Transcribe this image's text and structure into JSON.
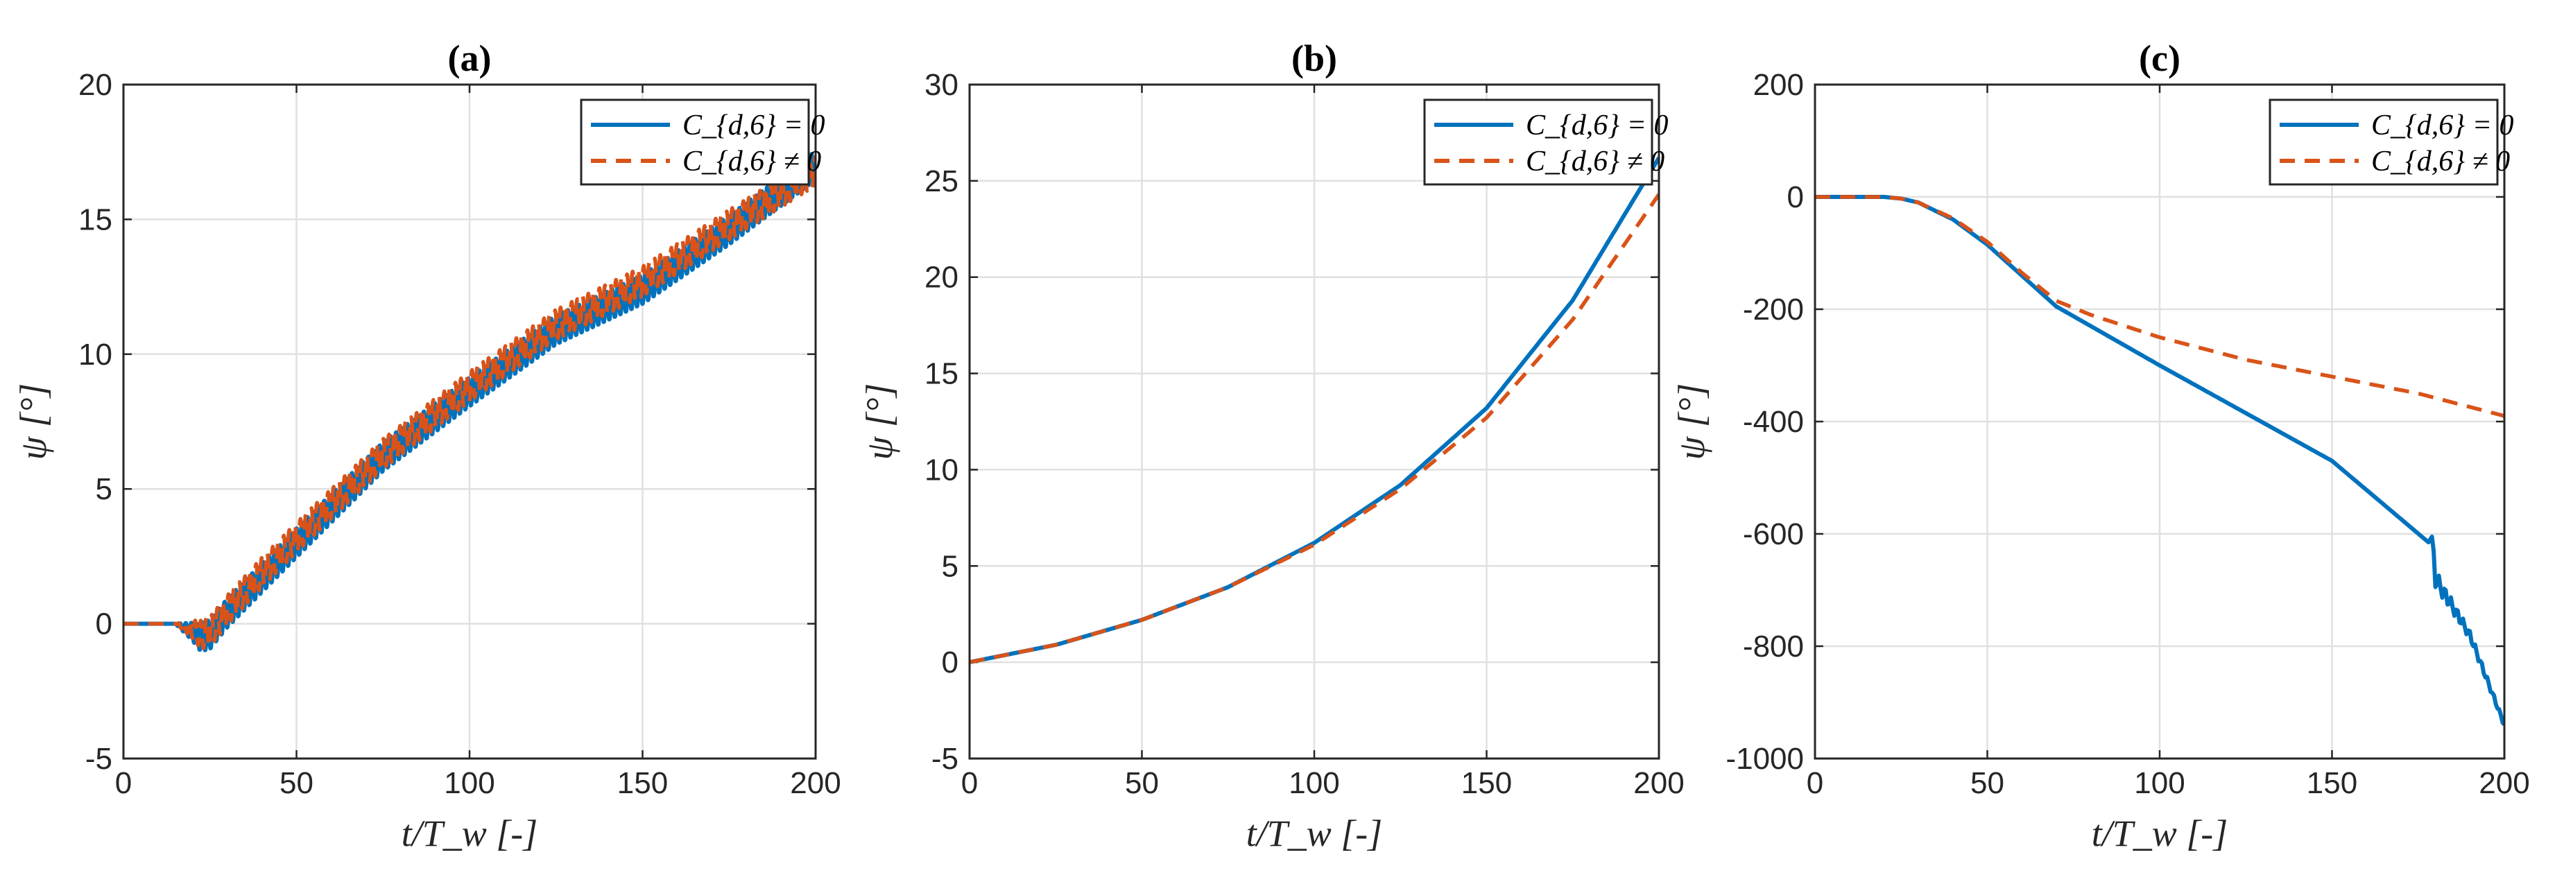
{
  "colors": {
    "series1": "#0072BD",
    "series2": "#D95319",
    "grid": "#e0e0e0",
    "axis": "#262626"
  },
  "chart_data": [
    {
      "type": "line",
      "title": "(a)",
      "xlabel": "t/T_w  [-]",
      "ylabel": "ψ [°]",
      "xlim": [
        0,
        200
      ],
      "ylim": [
        -5,
        20
      ],
      "xticks": [
        "0",
        "50",
        "100",
        "150",
        "200"
      ],
      "yticks": [
        "-5",
        "0",
        "5",
        "10",
        "15",
        "20"
      ],
      "grid": true,
      "legend_position": "top-right",
      "oscillation": 0.55,
      "series": [
        {
          "name": "C_{d,6} = 0",
          "style": "solid",
          "x": [
            0,
            15,
            20,
            22,
            25,
            30,
            40,
            50,
            75,
            100,
            125,
            150,
            175,
            200
          ],
          "y": [
            0,
            0,
            -0.3,
            -0.5,
            -0.4,
            0.4,
            1.7,
            3.0,
            6.2,
            8.6,
            10.9,
            12.4,
            14.6,
            17.0
          ]
        },
        {
          "name": "C_{d,6} ≠ 0",
          "style": "dashed",
          "x": [
            0,
            15,
            20,
            22,
            25,
            30,
            40,
            50,
            75,
            100,
            125,
            150,
            175,
            200
          ],
          "y": [
            0,
            0,
            -0.2,
            -0.4,
            -0.3,
            0.5,
            1.9,
            3.2,
            6.3,
            8.8,
            11.1,
            12.7,
            14.8,
            16.8
          ]
        }
      ]
    },
    {
      "type": "line",
      "title": "(b)",
      "xlabel": "t/T_w  [-]",
      "ylabel": "ψ [°]",
      "xlim": [
        0,
        200
      ],
      "ylim": [
        -5,
        30
      ],
      "xticks": [
        "0",
        "50",
        "100",
        "150",
        "200"
      ],
      "yticks": [
        "-5",
        "0",
        "5",
        "10",
        "15",
        "20",
        "25",
        "30"
      ],
      "grid": true,
      "legend_position": "top-right",
      "oscillation": 0,
      "series": [
        {
          "name": "C_{d,6} = 0",
          "style": "solid",
          "x": [
            0,
            25,
            50,
            75,
            100,
            125,
            150,
            175,
            200
          ],
          "y": [
            0,
            0.9,
            2.2,
            3.9,
            6.2,
            9.2,
            13.2,
            18.8,
            26.2
          ]
        },
        {
          "name": "C_{d,6} ≠ 0",
          "style": "dashed",
          "x": [
            0,
            25,
            50,
            75,
            100,
            125,
            150,
            175,
            200
          ],
          "y": [
            0,
            0.9,
            2.2,
            3.9,
            6.1,
            9.0,
            12.7,
            17.8,
            24.3
          ]
        }
      ]
    },
    {
      "type": "line",
      "title": "(c)",
      "xlabel": "t/T_w  [-]",
      "ylabel": "ψ [°]",
      "xlim": [
        0,
        200
      ],
      "ylim": [
        -1000,
        200
      ],
      "xticks": [
        "0",
        "50",
        "100",
        "150",
        "200"
      ],
      "yticks": [
        "-1000",
        "-800",
        "-600",
        "-400",
        "-200",
        "0",
        "200"
      ],
      "grid": true,
      "legend_position": "top-right",
      "oscillation": 0,
      "series": [
        {
          "name": "C_{d,6} = 0",
          "style": "solid",
          "x": [
            0,
            20,
            25,
            30,
            40,
            50,
            60,
            70,
            80,
            100,
            125,
            150,
            178,
            179,
            180,
            182,
            185,
            190,
            195,
            200
          ],
          "y": [
            0,
            0,
            -3,
            -10,
            -40,
            -85,
            -140,
            -195,
            -230,
            -300,
            -385,
            -470,
            -615,
            -605,
            -680,
            -700,
            -730,
            -780,
            -860,
            -940
          ]
        },
        {
          "name": "C_{d,6} ≠ 0",
          "style": "dashed",
          "x": [
            0,
            20,
            25,
            30,
            40,
            50,
            60,
            70,
            80,
            100,
            125,
            150,
            175,
            200
          ],
          "y": [
            0,
            0,
            -3,
            -10,
            -38,
            -80,
            -135,
            -185,
            -210,
            -250,
            -290,
            -320,
            -350,
            -390
          ]
        }
      ]
    }
  ]
}
